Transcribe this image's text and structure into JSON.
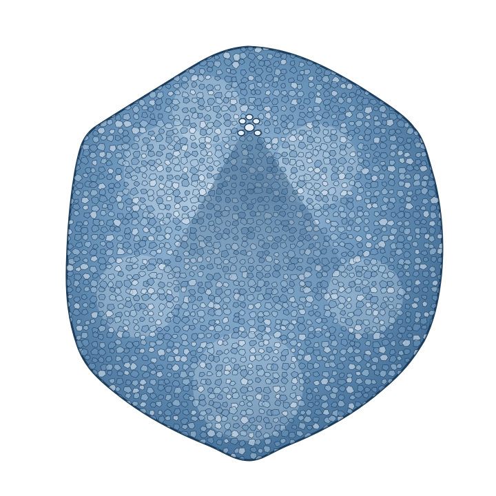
{
  "palette": {
    "background": "#ffffff",
    "outline": "#1d3d5c",
    "shell_base": "#6f98bd",
    "shell_light": "#a9c6df",
    "shell_highlight": "#e6eff7",
    "shell_dark": "#3f6a92",
    "face_shadow": "#2f587f"
  },
  "subject": {
    "icon": "icosahedral-virus-capsid-icon"
  }
}
